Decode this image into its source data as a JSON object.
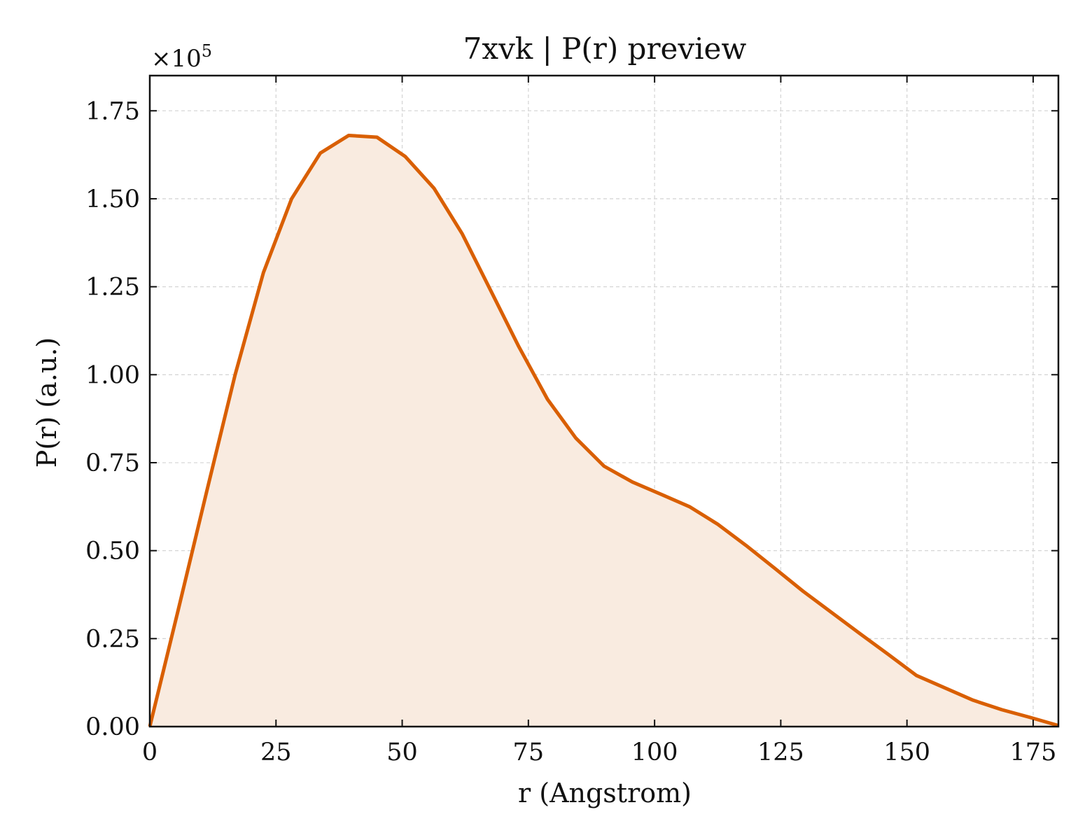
{
  "chart_data": {
    "type": "area",
    "title": "7xvk | P(r) preview",
    "xlabel": "r (Angstrom)",
    "ylabel": "P(r) (a.u.)",
    "y_multiplier_label": "×10",
    "y_multiplier_exponent": "5",
    "xlim": [
      0,
      180
    ],
    "ylim": [
      0,
      1.85
    ],
    "x_ticks": [
      0,
      25,
      50,
      75,
      100,
      125,
      150,
      175
    ],
    "x_tick_labels": [
      "0",
      "25",
      "50",
      "75",
      "100",
      "125",
      "150",
      "175"
    ],
    "y_ticks": [
      0,
      0.25,
      0.5,
      0.75,
      1.0,
      1.25,
      1.5,
      1.75
    ],
    "y_tick_labels": [
      "0.00",
      "0.25",
      "0.50",
      "0.75",
      "1.00",
      "1.25",
      "1.50",
      "1.75"
    ],
    "grid": true,
    "series": [
      {
        "color": "#d95f02",
        "fill_color": "#f9ebe0",
        "x": [
          0,
          5.6,
          11.3,
          16.9,
          22.5,
          28.1,
          33.8,
          39.4,
          45.0,
          50.6,
          56.3,
          61.9,
          67.5,
          73.1,
          78.8,
          84.4,
          90.0,
          95.6,
          101.3,
          106.9,
          112.5,
          118.1,
          123.8,
          129.4,
          135.0,
          140.6,
          146.3,
          151.9,
          157.5,
          163.1,
          168.8,
          174.4,
          180.0
        ],
        "y": [
          0,
          0.33,
          0.67,
          1.0,
          1.29,
          1.5,
          1.63,
          1.68,
          1.675,
          1.62,
          1.53,
          1.4,
          1.24,
          1.08,
          0.93,
          0.82,
          0.74,
          0.695,
          0.66,
          0.625,
          0.575,
          0.515,
          0.45,
          0.385,
          0.325,
          0.265,
          0.205,
          0.145,
          0.11,
          0.075,
          0.048,
          0.026,
          0.003
        ]
      }
    ]
  }
}
